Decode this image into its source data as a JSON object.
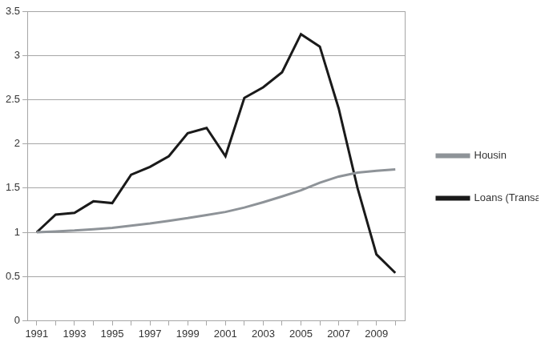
{
  "chart_data": {
    "type": "line",
    "categories": [
      "1991",
      null,
      "1993",
      null,
      "1995",
      null,
      "1997",
      null,
      "1999",
      null,
      "2001",
      null,
      "2003",
      null,
      "2005",
      null,
      "2007",
      null,
      "2009",
      null
    ],
    "series": [
      {
        "name": "Housin",
        "color": "#8e9398",
        "values": [
          1.0,
          1.01,
          1.02,
          1.035,
          1.05,
          1.075,
          1.1,
          1.13,
          1.16,
          1.195,
          1.23,
          1.28,
          1.34,
          1.405,
          1.475,
          1.56,
          1.63,
          1.675,
          1.695,
          1.71
        ]
      },
      {
        "name": "Loans (Transa",
        "color": "#1a1a1a",
        "values": [
          1.0,
          1.2,
          1.22,
          1.35,
          1.33,
          1.65,
          1.74,
          1.86,
          2.12,
          2.18,
          1.86,
          2.52,
          2.64,
          2.81,
          3.24,
          3.1,
          2.4,
          1.5,
          0.75,
          0.54
        ]
      }
    ],
    "ylim": [
      0,
      3.5
    ],
    "yticks": [
      0,
      0.5,
      1,
      1.5,
      2,
      2.5,
      3,
      3.5
    ],
    "grid": true,
    "legend": "right"
  }
}
